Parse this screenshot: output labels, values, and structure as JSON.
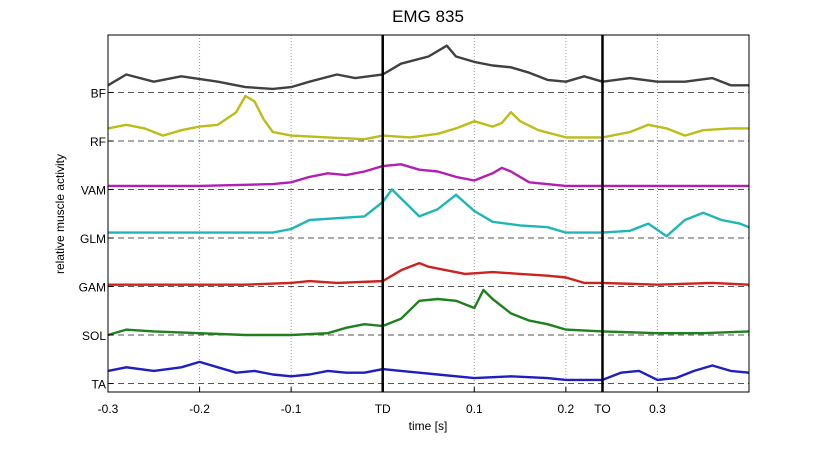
{
  "chart_data": {
    "type": "line",
    "title": "EMG 835",
    "xlabel": "time [s]",
    "ylabel": "relative muscle activity",
    "xlim": [
      -0.3,
      0.4
    ],
    "grid": true,
    "x_ticks": [
      {
        "value": -0.3,
        "label": "-0.3"
      },
      {
        "value": -0.2,
        "label": "-0.2"
      },
      {
        "value": -0.1,
        "label": "-0.1"
      },
      {
        "value": 0.0,
        "label": "TD"
      },
      {
        "value": 0.1,
        "label": "0.1"
      },
      {
        "value": 0.2,
        "label": "0.2"
      },
      {
        "value": 0.24,
        "label": "TO"
      },
      {
        "value": 0.3,
        "label": "0.3"
      }
    ],
    "events": [
      {
        "name": "TD",
        "x": 0.0
      },
      {
        "name": "TO",
        "x": 0.24
      }
    ],
    "series": [
      {
        "name": "BF",
        "color": "#404040",
        "points": [
          [
            -0.3,
            0.2
          ],
          [
            -0.28,
            0.5
          ],
          [
            -0.25,
            0.3
          ],
          [
            -0.22,
            0.45
          ],
          [
            -0.18,
            0.3
          ],
          [
            -0.15,
            0.15
          ],
          [
            -0.12,
            0.1
          ],
          [
            -0.1,
            0.15
          ],
          [
            -0.08,
            0.3
          ],
          [
            -0.05,
            0.5
          ],
          [
            -0.03,
            0.4
          ],
          [
            0.0,
            0.5
          ],
          [
            0.02,
            0.8
          ],
          [
            0.05,
            1.0
          ],
          [
            0.07,
            1.3
          ],
          [
            0.08,
            1.0
          ],
          [
            0.1,
            0.85
          ],
          [
            0.12,
            0.75
          ],
          [
            0.14,
            0.7
          ],
          [
            0.16,
            0.55
          ],
          [
            0.18,
            0.35
          ],
          [
            0.2,
            0.3
          ],
          [
            0.22,
            0.45
          ],
          [
            0.24,
            0.3
          ],
          [
            0.27,
            0.4
          ],
          [
            0.3,
            0.3
          ],
          [
            0.33,
            0.3
          ],
          [
            0.36,
            0.4
          ],
          [
            0.38,
            0.2
          ],
          [
            0.4,
            0.2
          ]
        ]
      },
      {
        "name": "RF",
        "color": "#bcbc1a",
        "points": [
          [
            -0.3,
            0.35
          ],
          [
            -0.28,
            0.45
          ],
          [
            -0.26,
            0.35
          ],
          [
            -0.24,
            0.15
          ],
          [
            -0.22,
            0.3
          ],
          [
            -0.2,
            0.4
          ],
          [
            -0.18,
            0.45
          ],
          [
            -0.16,
            0.8
          ],
          [
            -0.15,
            1.25
          ],
          [
            -0.14,
            1.1
          ],
          [
            -0.13,
            0.6
          ],
          [
            -0.12,
            0.25
          ],
          [
            -0.1,
            0.15
          ],
          [
            -0.06,
            0.1
          ],
          [
            -0.02,
            0.05
          ],
          [
            0.0,
            0.15
          ],
          [
            0.03,
            0.1
          ],
          [
            0.06,
            0.2
          ],
          [
            0.08,
            0.35
          ],
          [
            0.1,
            0.55
          ],
          [
            0.12,
            0.4
          ],
          [
            0.13,
            0.5
          ],
          [
            0.14,
            0.8
          ],
          [
            0.15,
            0.55
          ],
          [
            0.17,
            0.3
          ],
          [
            0.2,
            0.1
          ],
          [
            0.24,
            0.1
          ],
          [
            0.27,
            0.25
          ],
          [
            0.29,
            0.45
          ],
          [
            0.31,
            0.35
          ],
          [
            0.33,
            0.15
          ],
          [
            0.35,
            0.3
          ],
          [
            0.38,
            0.35
          ],
          [
            0.4,
            0.35
          ]
        ]
      },
      {
        "name": "VAM",
        "color": "#b31eb3",
        "points": [
          [
            -0.3,
            0.1
          ],
          [
            -0.2,
            0.1
          ],
          [
            -0.12,
            0.15
          ],
          [
            -0.1,
            0.2
          ],
          [
            -0.08,
            0.35
          ],
          [
            -0.06,
            0.45
          ],
          [
            -0.04,
            0.4
          ],
          [
            -0.02,
            0.5
          ],
          [
            0.0,
            0.65
          ],
          [
            0.02,
            0.7
          ],
          [
            0.04,
            0.55
          ],
          [
            0.06,
            0.5
          ],
          [
            0.08,
            0.35
          ],
          [
            0.1,
            0.25
          ],
          [
            0.12,
            0.45
          ],
          [
            0.13,
            0.6
          ],
          [
            0.14,
            0.5
          ],
          [
            0.16,
            0.2
          ],
          [
            0.2,
            0.1
          ],
          [
            0.24,
            0.1
          ],
          [
            0.3,
            0.1
          ],
          [
            0.4,
            0.1
          ]
        ]
      },
      {
        "name": "GLM",
        "color": "#20b6b6",
        "points": [
          [
            -0.3,
            0.15
          ],
          [
            -0.2,
            0.15
          ],
          [
            -0.12,
            0.15
          ],
          [
            -0.1,
            0.25
          ],
          [
            -0.08,
            0.5
          ],
          [
            -0.05,
            0.55
          ],
          [
            -0.02,
            0.6
          ],
          [
            0.0,
            1.0
          ],
          [
            0.01,
            1.35
          ],
          [
            0.02,
            1.1
          ],
          [
            0.04,
            0.6
          ],
          [
            0.06,
            0.8
          ],
          [
            0.08,
            1.2
          ],
          [
            0.1,
            0.75
          ],
          [
            0.12,
            0.45
          ],
          [
            0.15,
            0.35
          ],
          [
            0.18,
            0.3
          ],
          [
            0.2,
            0.15
          ],
          [
            0.24,
            0.15
          ],
          [
            0.27,
            0.2
          ],
          [
            0.29,
            0.4
          ],
          [
            0.31,
            0.05
          ],
          [
            0.33,
            0.5
          ],
          [
            0.35,
            0.7
          ],
          [
            0.37,
            0.5
          ],
          [
            0.39,
            0.4
          ],
          [
            0.4,
            0.3
          ]
        ]
      },
      {
        "name": "GAM",
        "color": "#cc2222",
        "points": [
          [
            -0.3,
            0.05
          ],
          [
            -0.2,
            0.05
          ],
          [
            -0.15,
            0.05
          ],
          [
            -0.1,
            0.1
          ],
          [
            -0.08,
            0.15
          ],
          [
            -0.05,
            0.1
          ],
          [
            0.0,
            0.15
          ],
          [
            0.02,
            0.45
          ],
          [
            0.04,
            0.65
          ],
          [
            0.05,
            0.55
          ],
          [
            0.07,
            0.45
          ],
          [
            0.09,
            0.35
          ],
          [
            0.12,
            0.4
          ],
          [
            0.15,
            0.35
          ],
          [
            0.18,
            0.3
          ],
          [
            0.2,
            0.25
          ],
          [
            0.22,
            0.1
          ],
          [
            0.24,
            0.1
          ],
          [
            0.3,
            0.05
          ],
          [
            0.36,
            0.1
          ],
          [
            0.4,
            0.05
          ]
        ]
      },
      {
        "name": "SOL",
        "color": "#1f801f",
        "points": [
          [
            -0.3,
            0.0
          ],
          [
            -0.28,
            0.15
          ],
          [
            -0.25,
            0.1
          ],
          [
            -0.2,
            0.05
          ],
          [
            -0.15,
            0.0
          ],
          [
            -0.1,
            0.0
          ],
          [
            -0.06,
            0.05
          ],
          [
            -0.04,
            0.2
          ],
          [
            -0.02,
            0.3
          ],
          [
            0.0,
            0.25
          ],
          [
            0.02,
            0.45
          ],
          [
            0.04,
            0.95
          ],
          [
            0.06,
            1.0
          ],
          [
            0.08,
            0.95
          ],
          [
            0.1,
            0.75
          ],
          [
            0.11,
            1.25
          ],
          [
            0.12,
            1.0
          ],
          [
            0.14,
            0.6
          ],
          [
            0.16,
            0.4
          ],
          [
            0.18,
            0.3
          ],
          [
            0.2,
            0.15
          ],
          [
            0.24,
            0.1
          ],
          [
            0.3,
            0.05
          ],
          [
            0.35,
            0.05
          ],
          [
            0.4,
            0.1
          ]
        ]
      },
      {
        "name": "TA",
        "color": "#1f1fbe",
        "points": [
          [
            -0.3,
            0.35
          ],
          [
            -0.28,
            0.45
          ],
          [
            -0.25,
            0.35
          ],
          [
            -0.22,
            0.45
          ],
          [
            -0.2,
            0.6
          ],
          [
            -0.18,
            0.45
          ],
          [
            -0.16,
            0.3
          ],
          [
            -0.14,
            0.35
          ],
          [
            -0.12,
            0.25
          ],
          [
            -0.1,
            0.2
          ],
          [
            -0.08,
            0.25
          ],
          [
            -0.06,
            0.35
          ],
          [
            -0.04,
            0.3
          ],
          [
            -0.02,
            0.3
          ],
          [
            0.0,
            0.4
          ],
          [
            0.02,
            0.35
          ],
          [
            0.04,
            0.3
          ],
          [
            0.06,
            0.25
          ],
          [
            0.1,
            0.15
          ],
          [
            0.14,
            0.2
          ],
          [
            0.18,
            0.15
          ],
          [
            0.2,
            0.1
          ],
          [
            0.24,
            0.1
          ],
          [
            0.26,
            0.3
          ],
          [
            0.28,
            0.35
          ],
          [
            0.3,
            0.1
          ],
          [
            0.32,
            0.15
          ],
          [
            0.34,
            0.35
          ],
          [
            0.36,
            0.5
          ],
          [
            0.38,
            0.35
          ],
          [
            0.4,
            0.3
          ]
        ]
      }
    ]
  }
}
